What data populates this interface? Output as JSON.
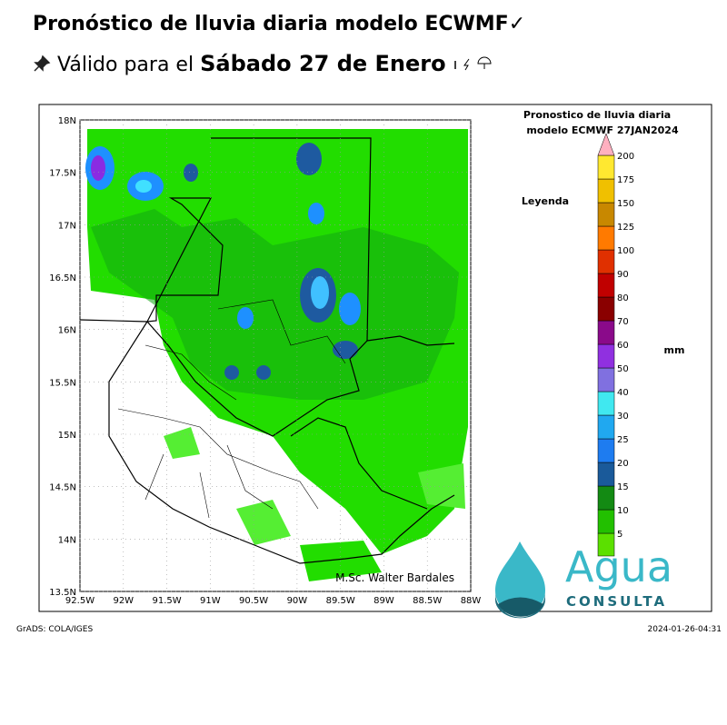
{
  "header": {
    "title": "Pronóstico de lluvia diaria modelo ECWMF✓",
    "subtitle_prefix": "Válido para el",
    "subtitle_date": "Sábado 27 de Enero"
  },
  "map": {
    "lat_labels": [
      "18N",
      "17.5N",
      "17N",
      "16.5N",
      "16N",
      "15.5N",
      "15N",
      "14.5N",
      "14N",
      "13.5N"
    ],
    "lon_labels": [
      "92.5W",
      "92W",
      "91.5W",
      "91W",
      "90.5W",
      "90W",
      "89.5W",
      "89W",
      "88.5W",
      "88W"
    ],
    "credit": "M.Sc. Walter Bardales"
  },
  "legend": {
    "title_line1": "Pronostico de lluvia diaria",
    "title_line2": "modelo ECMWF    27JAN2024",
    "caption": "Leyenda",
    "unit": "mm",
    "levels": [
      5,
      10,
      15,
      20,
      25,
      30,
      40,
      50,
      60,
      70,
      80,
      90,
      100,
      125,
      150,
      175,
      200
    ]
  },
  "logo": {
    "name": "Agua",
    "tagline": "CONSULTA"
  },
  "footer": {
    "left": "GrADS: COLA/IGES",
    "right": "2024-01-26-04:31"
  }
}
